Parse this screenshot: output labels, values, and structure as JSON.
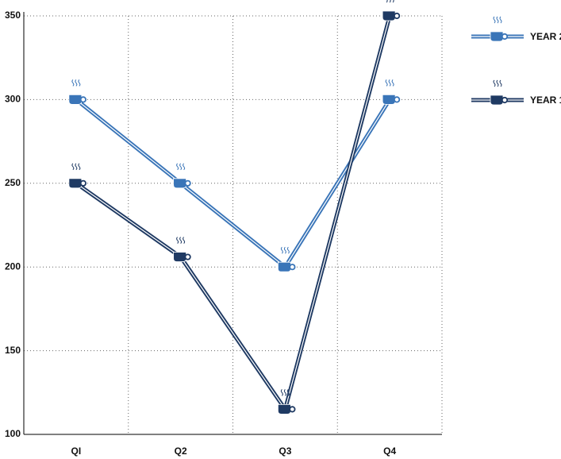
{
  "chart_data": {
    "type": "line",
    "categories": [
      "QI",
      "Q2",
      "Q3",
      "Q4"
    ],
    "series": [
      {
        "name": "YEAR 2",
        "color": "#3a75b8",
        "values": [
          300,
          250,
          200,
          300
        ]
      },
      {
        "name": "YEAR 1",
        "color": "#1f3a63",
        "values": [
          250,
          206,
          115,
          350
        ]
      }
    ],
    "ylim": [
      100,
      350
    ],
    "yticks": [
      100,
      150,
      200,
      250,
      300,
      350
    ],
    "grid": true
  }
}
